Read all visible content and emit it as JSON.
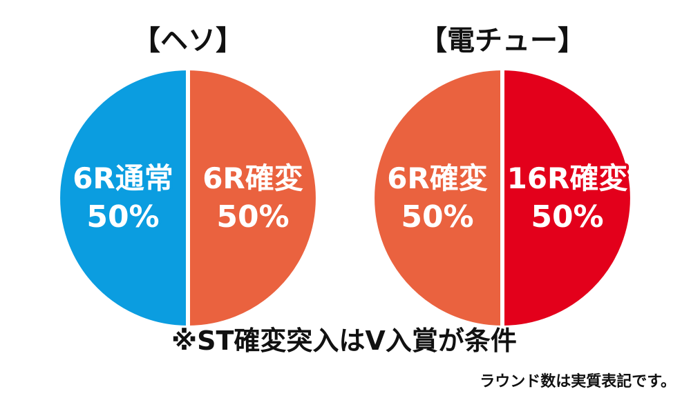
{
  "chart_data": [
    {
      "type": "pie",
      "title": "【ヘソ】",
      "slices": [
        {
          "label": "6R通常",
          "value": 50,
          "value_label": "50%",
          "color": "#0b9de0"
        },
        {
          "label": "6R確変",
          "value": 50,
          "value_label": "50%",
          "color": "#ea623f"
        }
      ]
    },
    {
      "type": "pie",
      "title": "【電チュー】",
      "slices": [
        {
          "label": "6R確変",
          "value": 50,
          "value_label": "50%",
          "color": "#ea623f"
        },
        {
          "label": "16R確変",
          "value": 50,
          "value_label": "50%",
          "color": "#e3001b"
        }
      ]
    }
  ],
  "footnote": "※ST確変突入はV入賞が条件",
  "note": "ラウンド数は実質表記です。"
}
